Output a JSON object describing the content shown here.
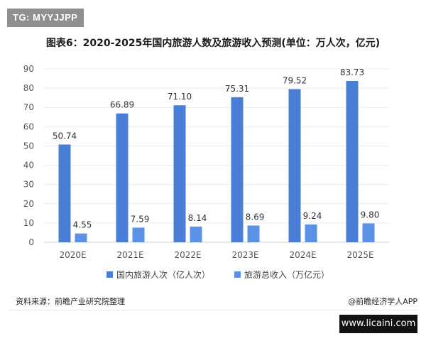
{
  "badge": "TG: MYYJJPP",
  "footer": {
    "source": "资料来源：前瞻产业研究院整理",
    "credit": "@前瞻经济学人APP",
    "site": "www.licaini.com"
  },
  "chart_data": {
    "type": "bar",
    "title": "图表6：2020-2025年国内旅游人数及旅游收入预测(单位：万人次，亿元)",
    "categories": [
      "2020E",
      "2021E",
      "2022E",
      "2023E",
      "2024E",
      "2025E"
    ],
    "series": [
      {
        "name": "国内旅游人次（亿人次）",
        "values": [
          50.74,
          66.89,
          71.1,
          75.31,
          79.52,
          83.73
        ],
        "labels": [
          "50.74",
          "66.89",
          "71.10",
          "75.31",
          "79.52",
          "83.73"
        ],
        "color": "#4a7ed6"
      },
      {
        "name": "旅游总收入（万亿元）",
        "values": [
          4.55,
          7.59,
          8.14,
          8.69,
          9.24,
          9.8
        ],
        "labels": [
          "4.55",
          "7.59",
          "8.14",
          "8.69",
          "9.24",
          "9.80"
        ],
        "color": "#5b92e5"
      }
    ],
    "yticks": [
      "0",
      "10",
      "20",
      "30",
      "40",
      "50",
      "60",
      "70",
      "80",
      "90"
    ],
    "ylim": [
      0,
      90
    ],
    "grid": true,
    "legend": "bottom"
  }
}
